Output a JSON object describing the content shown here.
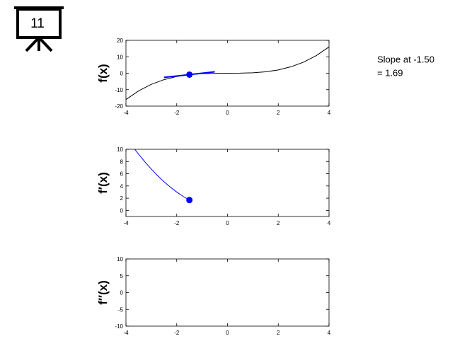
{
  "icon_label": "11",
  "annotations": [
    "Slope at -1.50",
    "= 1.69"
  ],
  "chart_data": [
    {
      "type": "line",
      "ylabel": "f(x)",
      "xlim": [
        -4,
        4
      ],
      "xticks": [
        -4,
        -2,
        0,
        2,
        4
      ],
      "ylim": [
        -20,
        20
      ],
      "yticks": [
        -20,
        -10,
        0,
        10,
        20
      ],
      "series": [
        {
          "color": "#000000",
          "x": [
            -4,
            -3.5,
            -3,
            -2.5,
            -2,
            -1.5,
            -1,
            -0.5,
            0,
            0.5,
            1,
            1.5,
            2,
            2.5,
            3,
            3.5,
            4
          ],
          "values": [
            -16,
            -10.72,
            -6.75,
            -3.91,
            -2,
            -0.84,
            -0.25,
            -0.03,
            0,
            0.03,
            0.25,
            0.84,
            2,
            3.91,
            6.75,
            10.72,
            16
          ]
        },
        {
          "color": "#0000ff",
          "x": [
            -2.5,
            -0.5
          ],
          "values": [
            -2.53,
            0.84
          ]
        },
        {
          "color": "#0000ff",
          "x": [
            -1.5
          ],
          "values": [
            -0.84
          ],
          "marker": true
        }
      ]
    },
    {
      "type": "line",
      "ylabel": "f′(x)",
      "xlim": [
        -4,
        4
      ],
      "xticks": [
        -4,
        -2,
        0,
        2,
        4
      ],
      "ylim": [
        -1,
        10
      ],
      "yticks": [
        0,
        2,
        4,
        6,
        8,
        10
      ],
      "series": [
        {
          "color": "#0000ff",
          "x": [
            -3.65,
            -3.5,
            -3.25,
            -3,
            -2.75,
            -2.5,
            -2.25,
            -2,
            -1.75,
            -1.5
          ],
          "values": [
            9.99,
            9.19,
            7.92,
            6.75,
            5.67,
            4.69,
            3.8,
            3,
            2.3,
            1.69
          ]
        },
        {
          "color": "#0000ff",
          "x": [
            -1.5
          ],
          "values": [
            1.69
          ],
          "marker": true
        }
      ]
    },
    {
      "type": "line",
      "ylabel": "f″(x)",
      "xlim": [
        -4,
        4
      ],
      "xticks": [
        -4,
        -2,
        0,
        2,
        4
      ],
      "ylim": [
        -10,
        10
      ],
      "yticks": [
        -10,
        -5,
        0,
        5,
        10
      ],
      "series": []
    }
  ]
}
